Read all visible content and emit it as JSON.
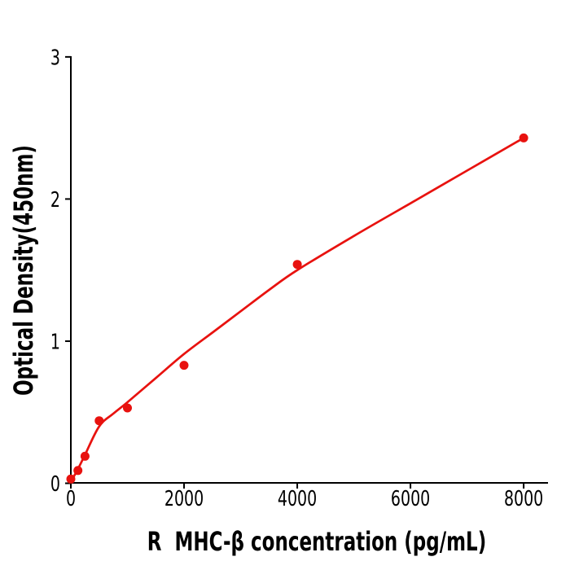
{
  "figure": {
    "background": "#ffffff"
  },
  "chart_data": {
    "type": "scatter",
    "title": "",
    "xlabel": "R  MHC-β concentration (pg/mL)",
    "ylabel": "Optical Density(450nm)",
    "xlim": [
      0,
      8430
    ],
    "ylim": [
      0,
      3.005
    ],
    "x_ticks": [
      0,
      2000,
      4000,
      6000,
      8000
    ],
    "y_ticks": [
      0,
      1,
      2,
      3
    ],
    "grid": false,
    "legend": "none",
    "point_color": "#e8120f",
    "line_color": "#e8120f",
    "axis_color": "#000000",
    "series": [
      {
        "name": "standard-points",
        "type": "scatter",
        "x": [
          0,
          125,
          250,
          500,
          1000,
          2000,
          4000,
          8000
        ],
        "y": [
          0.03,
          0.09,
          0.19,
          0.44,
          0.53,
          0.83,
          1.54,
          2.43
        ]
      },
      {
        "name": "fit-curve",
        "type": "line",
        "x": [
          0,
          125,
          250,
          500,
          750,
          1000,
          1500,
          2000,
          2500,
          3000,
          3500,
          4000,
          5000,
          6000,
          7000,
          8000
        ],
        "y": [
          0.01,
          0.1,
          0.2,
          0.4,
          0.49,
          0.57,
          0.74,
          0.91,
          1.06,
          1.21,
          1.36,
          1.5,
          1.74,
          1.97,
          2.2,
          2.43
        ]
      }
    ]
  }
}
